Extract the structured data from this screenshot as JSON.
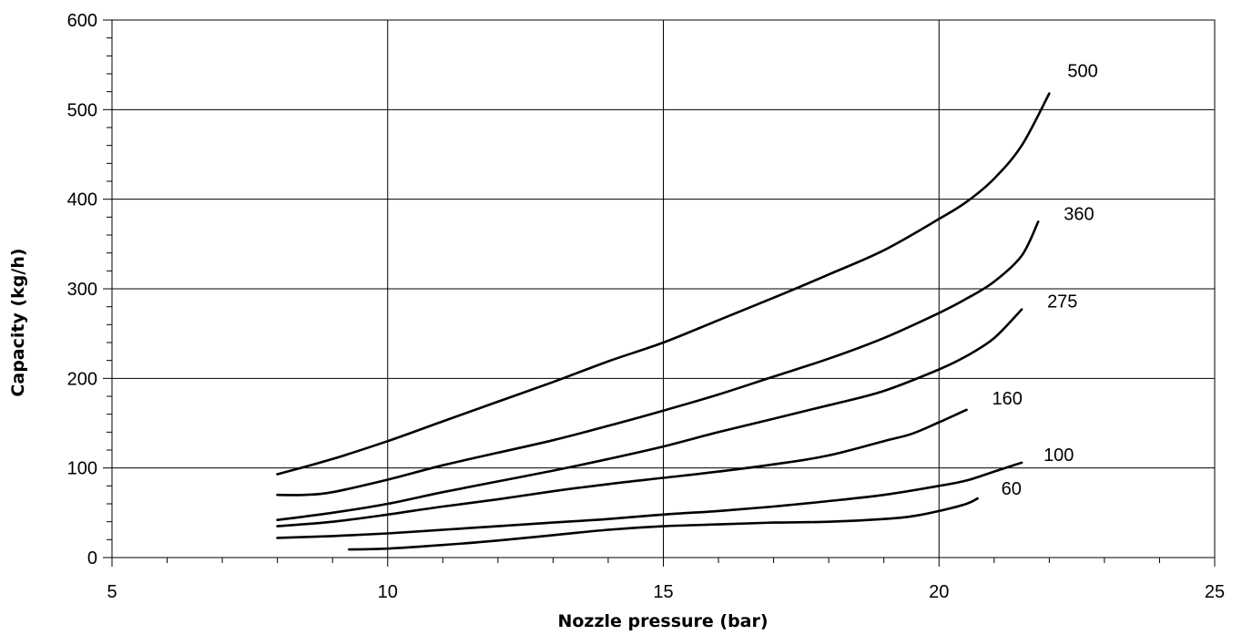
{
  "chart_data": {
    "type": "line",
    "title": "",
    "xlabel": "Nozzle pressure (bar)",
    "ylabel": "Capacity (kg/h)",
    "xlim": [
      5,
      25
    ],
    "ylim": [
      0,
      600
    ],
    "x_ticks": [
      5,
      10,
      15,
      20,
      25
    ],
    "y_ticks": [
      0,
      100,
      200,
      300,
      400,
      500,
      600
    ],
    "grid": true,
    "legend": "none",
    "series": [
      {
        "name": "500",
        "points": [
          [
            8,
            93
          ],
          [
            9,
            110
          ],
          [
            10,
            130
          ],
          [
            11,
            152
          ],
          [
            12,
            174
          ],
          [
            13,
            196
          ],
          [
            14,
            219
          ],
          [
            15,
            240
          ],
          [
            16,
            265
          ],
          [
            17,
            290
          ],
          [
            18,
            316
          ],
          [
            19,
            343
          ],
          [
            20,
            378
          ],
          [
            20.5,
            397
          ],
          [
            21,
            423
          ],
          [
            21.5,
            460
          ],
          [
            22,
            518
          ]
        ]
      },
      {
        "name": "360",
        "points": [
          [
            8,
            70
          ],
          [
            8.5,
            70
          ],
          [
            9,
            73
          ],
          [
            10,
            87
          ],
          [
            11,
            103
          ],
          [
            12,
            117
          ],
          [
            13,
            131
          ],
          [
            14,
            147
          ],
          [
            15,
            164
          ],
          [
            16,
            182
          ],
          [
            17,
            202
          ],
          [
            18,
            222
          ],
          [
            19,
            245
          ],
          [
            20,
            273
          ],
          [
            20.5,
            289
          ],
          [
            21,
            308
          ],
          [
            21.5,
            337
          ],
          [
            21.8,
            375
          ]
        ]
      },
      {
        "name": "275",
        "points": [
          [
            8,
            42
          ],
          [
            9,
            50
          ],
          [
            10,
            60
          ],
          [
            11,
            73
          ],
          [
            12,
            85
          ],
          [
            13,
            97
          ],
          [
            14,
            110
          ],
          [
            15,
            124
          ],
          [
            16,
            140
          ],
          [
            17,
            155
          ],
          [
            18,
            170
          ],
          [
            19,
            186
          ],
          [
            20,
            210
          ],
          [
            20.5,
            225
          ],
          [
            21,
            245
          ],
          [
            21.5,
            277
          ]
        ]
      },
      {
        "name": "160",
        "points": [
          [
            8,
            35
          ],
          [
            9,
            40
          ],
          [
            10,
            48
          ],
          [
            11,
            57
          ],
          [
            12,
            65
          ],
          [
            13,
            74
          ],
          [
            14,
            82
          ],
          [
            15,
            89
          ],
          [
            16,
            96
          ],
          [
            17,
            104
          ],
          [
            18,
            114
          ],
          [
            19,
            130
          ],
          [
            19.5,
            138
          ],
          [
            20,
            151
          ],
          [
            20.5,
            165
          ]
        ]
      },
      {
        "name": "100",
        "points": [
          [
            8,
            22
          ],
          [
            9,
            24
          ],
          [
            10,
            27
          ],
          [
            11,
            31
          ],
          [
            12,
            35
          ],
          [
            13,
            39
          ],
          [
            14,
            43
          ],
          [
            15,
            48
          ],
          [
            16,
            52
          ],
          [
            17,
            57
          ],
          [
            18,
            63
          ],
          [
            19,
            70
          ],
          [
            20,
            80
          ],
          [
            20.5,
            86
          ],
          [
            21,
            96
          ],
          [
            21.5,
            106
          ]
        ]
      },
      {
        "name": "60",
        "points": [
          [
            9.3,
            9
          ],
          [
            10,
            10
          ],
          [
            11,
            14
          ],
          [
            12,
            19
          ],
          [
            13,
            25
          ],
          [
            14,
            31
          ],
          [
            15,
            35
          ],
          [
            16,
            37
          ],
          [
            17,
            39
          ],
          [
            18,
            40
          ],
          [
            19,
            43
          ],
          [
            19.5,
            46
          ],
          [
            20,
            52
          ],
          [
            20.5,
            60
          ],
          [
            20.7,
            66
          ]
        ]
      }
    ]
  }
}
